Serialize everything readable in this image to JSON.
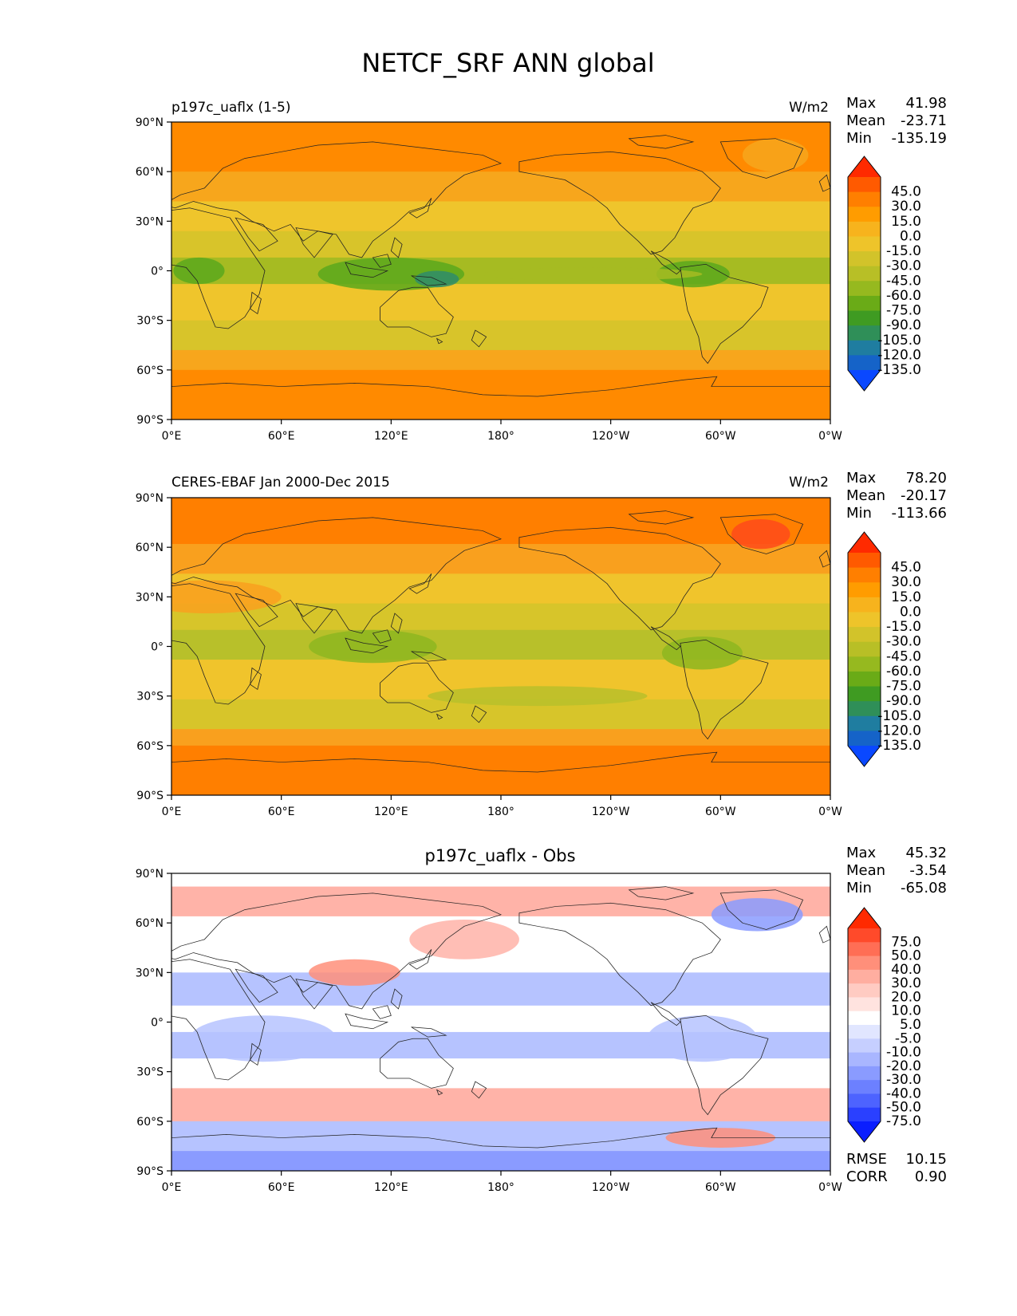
{
  "title": "NETCF_SRF ANN global",
  "lat_ticks": [
    "90°N",
    "60°N",
    "30°N",
    "0°",
    "30°S",
    "60°S",
    "90°S"
  ],
  "lon_ticks": [
    "0°E",
    "60°E",
    "120°E",
    "180°",
    "120°W",
    "60°W",
    "0°W"
  ],
  "stat_labels": {
    "max": "Max",
    "mean": "Mean",
    "min": "Min",
    "rmse": "RMSE",
    "corr": "CORR"
  },
  "panels": [
    {
      "id": "test",
      "left_title": "p197c_uaflx (1-5)",
      "center_title": "",
      "units": "W/m2",
      "max": "41.98",
      "mean": "-23.71",
      "min": "-135.19",
      "colorbar_labels": [
        "45.0",
        "30.0",
        "15.0",
        "0.0",
        "-15.0",
        "-30.0",
        "-45.0",
        "-60.0",
        "-75.0",
        "-90.0",
        "-105.0",
        "-120.0",
        "-135.0"
      ],
      "colorbar_colors": [
        "#ff2a00",
        "#ff5a00",
        "#ff7f00",
        "#ff9c00",
        "#f7b31d",
        "#eec42a",
        "#d2c32a",
        "#b8bf26",
        "#96b91f",
        "#6aab17",
        "#3f9b22",
        "#2f8f58",
        "#1f7da0",
        "#1563c8",
        "#0a48ff"
      ]
    },
    {
      "id": "reference",
      "left_title": "CERES-EBAF Jan 2000-Dec 2015",
      "center_title": "",
      "units": "W/m2",
      "max": "78.20",
      "mean": "-20.17",
      "min": "-113.66",
      "colorbar_labels": [
        "45.0",
        "30.0",
        "15.0",
        "0.0",
        "-15.0",
        "-30.0",
        "-45.0",
        "-60.0",
        "-75.0",
        "-90.0",
        "-105.0",
        "-120.0",
        "-135.0"
      ],
      "colorbar_colors": [
        "#ff2a00",
        "#ff5a00",
        "#ff7f00",
        "#ff9c00",
        "#f7b31d",
        "#eec42a",
        "#d2c32a",
        "#b8bf26",
        "#96b91f",
        "#6aab17",
        "#3f9b22",
        "#2f8f58",
        "#1f7da0",
        "#1563c8",
        "#0a48ff"
      ]
    },
    {
      "id": "difference",
      "left_title": "",
      "center_title": "p197c_uaflx - Obs",
      "units": "",
      "max": "45.32",
      "mean": "-3.54",
      "min": "-65.08",
      "rmse": "10.15",
      "corr": "0.90",
      "colorbar_labels": [
        "75.0",
        "50.0",
        "40.0",
        "30.0",
        "20.0",
        "10.0",
        "5.0",
        "-5.0",
        "-10.0",
        "-20.0",
        "-30.0",
        "-40.0",
        "-50.0",
        "-75.0"
      ],
      "colorbar_colors": [
        "#ff2a00",
        "#ff4a2a",
        "#ff6e55",
        "#ff8f7a",
        "#ffaea0",
        "#ffcbc2",
        "#ffe3df",
        "#ffffff",
        "#e1e6ff",
        "#c6cfff",
        "#a9b6ff",
        "#8a9bff",
        "#6c80ff",
        "#4d63ff",
        "#2a40ff",
        "#0a1eff"
      ]
    }
  ],
  "colors": {
    "test_polar": "#ff8a00",
    "test_subpolar": "#f7a61c",
    "test_midlat": "#efc52c",
    "test_subtrop_belt": "#d8c42a",
    "test_itcz": "#a6bb22",
    "test_warmpool": "#5aa81c",
    "test_warmpool_core": "#2f8c6a",
    "ref_polar": "#ff7f00",
    "ref_subpolar": "#f9a01e",
    "ref_midlat": "#f0c42c",
    "ref_subtrop_belt": "#d7c52a",
    "ref_itcz": "#b8c02a",
    "ref_warmpool": "#8db620",
    "ref_greenland": "#ff4a1a",
    "diff_red": "#ffb3a8",
    "diff_red_strong": "#ff8f7a",
    "diff_blue": "#b6c3ff",
    "diff_blue_strong": "#8a9bff",
    "coastline": "#222222"
  }
}
